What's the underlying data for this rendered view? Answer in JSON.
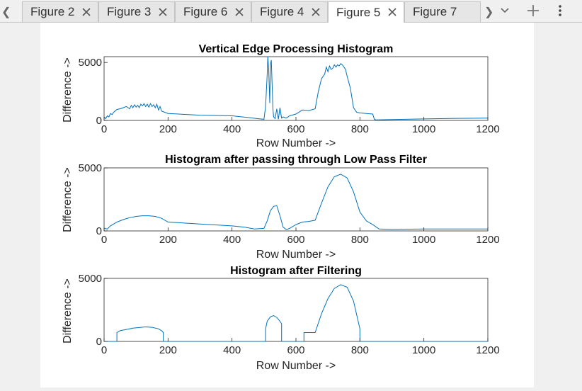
{
  "tabs": [
    {
      "label": "Figure 2",
      "active": false
    },
    {
      "label": "Figure 3",
      "active": false
    },
    {
      "label": "Figure 6",
      "active": false
    },
    {
      "label": "Figure 4",
      "active": false
    },
    {
      "label": "Figure 5",
      "active": true
    },
    {
      "label": "Figure 7",
      "active": false
    }
  ],
  "icons": {
    "scroll_left": "chevron-left-icon",
    "scroll_right": "chevron-right-icon",
    "dropdown": "chevron-down-icon",
    "add": "plus-icon",
    "menu": "kebab-menu-icon",
    "close": "close-icon"
  },
  "colors": {
    "line": "#0072bd",
    "axis": "#262626"
  },
  "chart_data": [
    {
      "type": "line",
      "title": "Vertical Edge Processing Histogram",
      "xlabel": "Row Number ->",
      "ylabel": "Difference ->",
      "xlim": [
        0,
        1200
      ],
      "ylim": [
        0,
        5500
      ],
      "xticks": [
        0,
        200,
        400,
        600,
        800,
        1000,
        1200
      ],
      "yticks": [
        0,
        5000
      ],
      "grid": false,
      "series": [
        {
          "x": [
            0,
            5,
            10,
            15,
            20,
            25,
            30,
            40,
            50,
            60,
            70,
            80,
            85,
            90,
            95,
            100,
            105,
            110,
            115,
            120,
            125,
            130,
            135,
            140,
            145,
            150,
            155,
            160,
            165,
            170,
            175,
            180,
            190,
            200,
            300,
            400,
            450,
            480,
            500,
            505,
            510,
            512,
            515,
            518,
            520,
            523,
            525,
            528,
            530,
            535,
            540,
            545,
            550,
            555,
            560,
            570,
            580,
            600,
            620,
            640,
            660,
            670,
            680,
            690,
            695,
            700,
            705,
            710,
            715,
            720,
            725,
            730,
            735,
            740,
            745,
            750,
            755,
            760,
            770,
            780,
            790,
            800,
            820,
            840,
            845,
            850,
            900,
            1000,
            1100,
            1200
          ],
          "y": [
            300,
            150,
            400,
            300,
            600,
            500,
            700,
            950,
            1000,
            1100,
            1200,
            1000,
            1300,
            1100,
            1350,
            1150,
            1300,
            1100,
            1400,
            1250,
            1450,
            1200,
            1400,
            1150,
            1450,
            1200,
            1350,
            1100,
            1400,
            900,
            1200,
            800,
            700,
            600,
            450,
            400,
            250,
            150,
            100,
            1200,
            4000,
            5500,
            4200,
            1500,
            4800,
            5200,
            3500,
            1000,
            300,
            150,
            1000,
            100,
            1100,
            200,
            300,
            200,
            400,
            550,
            900,
            850,
            1000,
            2500,
            3600,
            4000,
            4600,
            4200,
            4700,
            4400,
            4500,
            4800,
            4600,
            4800,
            4700,
            4900,
            4800,
            4600,
            4400,
            3800,
            2800,
            1100,
            700,
            650,
            600,
            550,
            100,
            50,
            80,
            130,
            180,
            200
          ]
        }
      ]
    },
    {
      "type": "line",
      "title": "Histogram after passing through Low Pass Filter",
      "xlabel": "Row Number ->",
      "ylabel": "Difference ->",
      "xlim": [
        0,
        1200
      ],
      "ylim": [
        0,
        5000
      ],
      "xticks": [
        0,
        200,
        400,
        600,
        800,
        1000,
        1200
      ],
      "yticks": [
        0,
        5000
      ],
      "grid": false,
      "series": [
        {
          "x": [
            0,
            10,
            20,
            40,
            60,
            80,
            100,
            120,
            140,
            160,
            180,
            200,
            300,
            400,
            440,
            470,
            500,
            510,
            520,
            530,
            540,
            550,
            560,
            570,
            580,
            600,
            620,
            640,
            660,
            680,
            700,
            720,
            740,
            760,
            780,
            800,
            820,
            840,
            860,
            900,
            1000,
            1100,
            1200
          ],
          "y": [
            200,
            150,
            400,
            700,
            900,
            1050,
            1150,
            1200,
            1200,
            1150,
            1000,
            700,
            550,
            400,
            300,
            150,
            200,
            800,
            1600,
            1950,
            2000,
            1200,
            300,
            100,
            200,
            500,
            700,
            750,
            850,
            2200,
            3500,
            4300,
            4500,
            4200,
            3100,
            1500,
            800,
            500,
            150,
            120,
            150,
            150,
            150
          ]
        }
      ]
    },
    {
      "type": "line",
      "title": "Histogram after Filtering",
      "xlabel": "Row Number ->",
      "ylabel": "Difference ->",
      "xlim": [
        0,
        1200
      ],
      "ylim": [
        0,
        5000
      ],
      "xticks": [
        0,
        200,
        400,
        600,
        800,
        1000,
        1200
      ],
      "yticks": [
        0,
        5000
      ],
      "grid": false,
      "series": [
        {
          "x": [
            0,
            40,
            40,
            50,
            70,
            90,
            110,
            130,
            150,
            170,
            180,
            185,
            185,
            505,
            505,
            510,
            520,
            530,
            540,
            550,
            555,
            555,
            625,
            625,
            660,
            680,
            700,
            720,
            740,
            760,
            780,
            800,
            800,
            1200
          ],
          "y": [
            0,
            0,
            700,
            850,
            950,
            1050,
            1100,
            1150,
            1120,
            1000,
            850,
            700,
            0,
            0,
            1000,
            1600,
            1950,
            2050,
            1900,
            1600,
            1400,
            0,
            0,
            700,
            700,
            2200,
            3400,
            4200,
            4500,
            4300,
            3200,
            1000,
            0,
            0
          ]
        }
      ]
    }
  ]
}
